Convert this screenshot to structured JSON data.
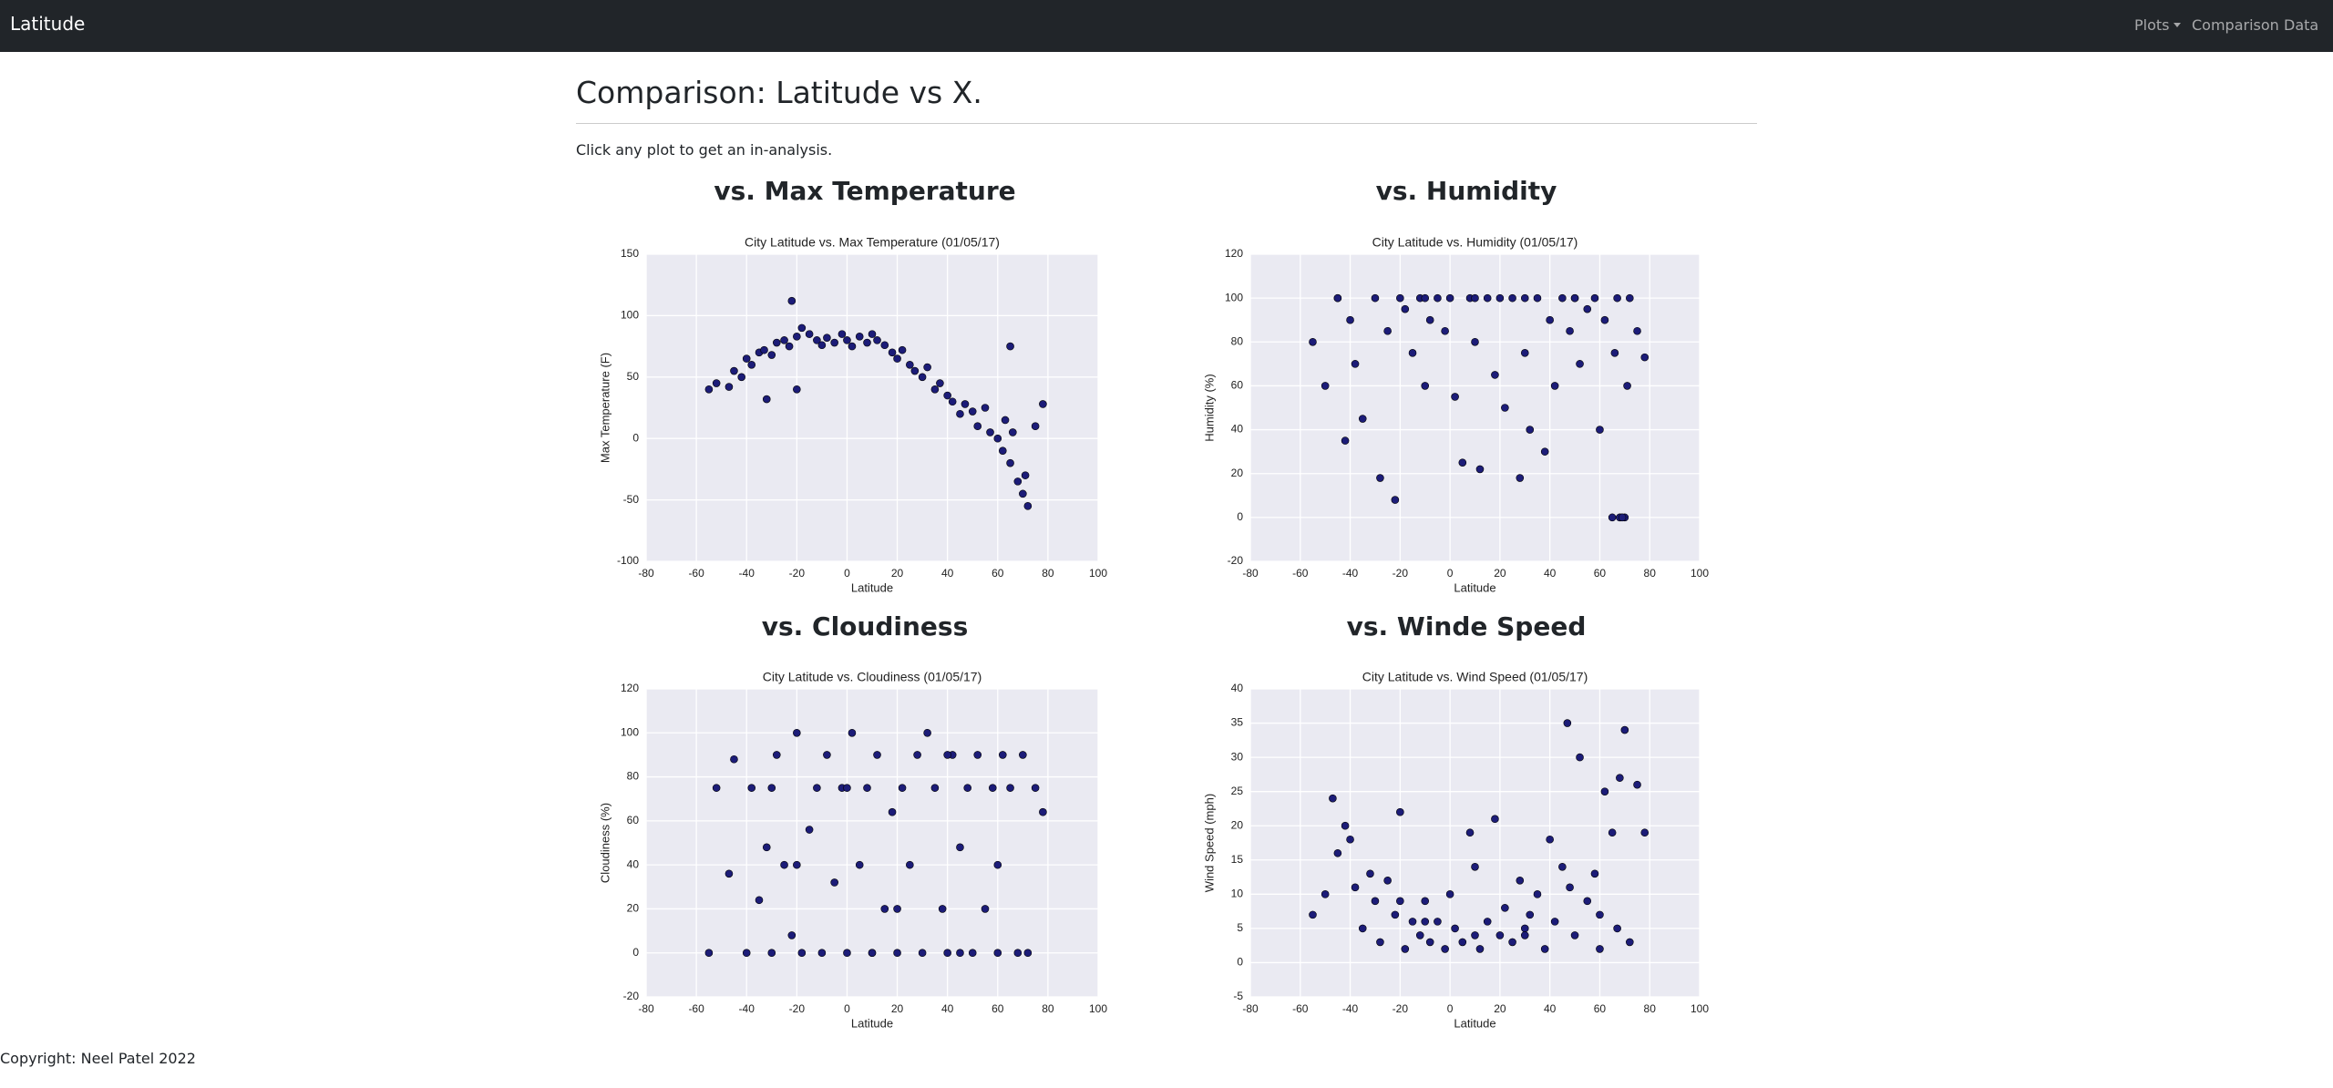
{
  "navbar": {
    "brand": "Latitude",
    "links": [
      "Plots",
      "Comparison",
      "Data"
    ]
  },
  "page": {
    "title": "Comparison: Latitude vs X.",
    "intro": "Click any plot to get an in-analysis.",
    "sections": [
      "vs. Max Temperature",
      "vs. Humidity",
      "vs. Cloudiness",
      "vs. Winde Speed"
    ],
    "footer": "Copyright: Neel Patel 2022"
  },
  "chart_data": [
    {
      "type": "scatter",
      "title": "City Latitude vs. Max Temperature (01/05/17)",
      "x_label": "Latitude",
      "y_label": "Max Temperature (F)",
      "color": "#1c1c78",
      "grid": true,
      "xlim": [
        -80,
        100
      ],
      "xticks": [
        -80,
        -60,
        -40,
        -20,
        0,
        20,
        40,
        60,
        80,
        100
      ],
      "ylim": [
        -100,
        150
      ],
      "yticks": [
        -100,
        -50,
        0,
        50,
        100,
        150
      ],
      "x": [
        -55,
        -52,
        -47,
        -45,
        -42,
        -40,
        -38,
        -35,
        -33,
        -30,
        -28,
        -25,
        -23,
        -22,
        -20,
        -18,
        -15,
        -12,
        -10,
        -8,
        -5,
        -2,
        0,
        2,
        5,
        8,
        10,
        12,
        15,
        18,
        20,
        22,
        25,
        27,
        30,
        32,
        35,
        37,
        40,
        42,
        45,
        47,
        50,
        52,
        55,
        57,
        60,
        62,
        63,
        65,
        66,
        68,
        70,
        71,
        72,
        75,
        78,
        -32,
        -20,
        65
      ],
      "values": [
        40,
        45,
        42,
        55,
        50,
        65,
        60,
        70,
        72,
        68,
        78,
        80,
        75,
        112,
        83,
        90,
        85,
        80,
        76,
        82,
        78,
        85,
        80,
        75,
        83,
        78,
        85,
        80,
        76,
        70,
        65,
        72,
        60,
        55,
        50,
        58,
        40,
        45,
        35,
        30,
        20,
        28,
        22,
        10,
        25,
        5,
        0,
        -10,
        15,
        -20,
        5,
        -35,
        -45,
        -30,
        -55,
        10,
        28,
        32,
        40,
        75
      ]
    },
    {
      "type": "scatter",
      "title": "City Latitude vs. Humidity (01/05/17)",
      "x_label": "Latitude",
      "y_label": "Humidity (%)",
      "color": "#1c1c78",
      "grid": true,
      "xlim": [
        -80,
        100
      ],
      "xticks": [
        -80,
        -60,
        -40,
        -20,
        0,
        20,
        40,
        60,
        80,
        100
      ],
      "ylim": [
        -20,
        120
      ],
      "yticks": [
        -20,
        0,
        20,
        40,
        60,
        80,
        100,
        120
      ],
      "x": [
        -55,
        -50,
        -45,
        -42,
        -40,
        -38,
        -35,
        -30,
        -28,
        -25,
        -22,
        -20,
        -18,
        -15,
        -12,
        -10,
        -8,
        -5,
        -2,
        0,
        2,
        5,
        8,
        10,
        12,
        15,
        18,
        20,
        22,
        25,
        28,
        30,
        32,
        35,
        38,
        40,
        42,
        45,
        48,
        50,
        52,
        55,
        58,
        60,
        62,
        65,
        67,
        68,
        70,
        72,
        75,
        78,
        -10,
        10,
        30,
        50,
        66,
        69,
        71,
        -45
      ],
      "values": [
        80,
        60,
        100,
        35,
        90,
        70,
        45,
        100,
        18,
        85,
        8,
        100,
        95,
        75,
        100,
        60,
        90,
        100,
        85,
        100,
        55,
        25,
        100,
        80,
        22,
        100,
        65,
        100,
        50,
        100,
        18,
        75,
        40,
        100,
        30,
        90,
        60,
        100,
        85,
        100,
        70,
        95,
        100,
        40,
        90,
        0,
        100,
        0,
        0,
        100,
        85,
        73,
        100,
        100,
        100,
        100,
        75,
        0,
        60,
        100
      ]
    },
    {
      "type": "scatter",
      "title": "City Latitude vs. Cloudiness (01/05/17)",
      "x_label": "Latitude",
      "y_label": "Cloudiness (%)",
      "color": "#1c1c78",
      "grid": true,
      "xlim": [
        -80,
        100
      ],
      "xticks": [
        -80,
        -60,
        -40,
        -20,
        0,
        20,
        40,
        60,
        80,
        100
      ],
      "ylim": [
        -20,
        120
      ],
      "yticks": [
        -20,
        0,
        20,
        40,
        60,
        80,
        100,
        120
      ],
      "x": [
        -55,
        -52,
        -47,
        -45,
        -40,
        -38,
        -35,
        -32,
        -30,
        -28,
        -25,
        -22,
        -20,
        -18,
        -15,
        -12,
        -10,
        -8,
        -5,
        -2,
        0,
        2,
        5,
        8,
        10,
        12,
        15,
        18,
        20,
        22,
        25,
        28,
        30,
        32,
        35,
        38,
        40,
        42,
        45,
        48,
        50,
        52,
        55,
        58,
        60,
        62,
        65,
        68,
        70,
        72,
        75,
        78,
        -30,
        -20,
        0,
        20,
        40,
        60,
        10,
        45
      ],
      "values": [
        0,
        75,
        36,
        88,
        0,
        75,
        24,
        48,
        0,
        90,
        40,
        8,
        100,
        0,
        56,
        75,
        0,
        90,
        32,
        75,
        0,
        100,
        40,
        75,
        0,
        90,
        20,
        64,
        0,
        75,
        40,
        90,
        0,
        100,
        75,
        20,
        0,
        90,
        48,
        75,
        0,
        90,
        20,
        75,
        0,
        90,
        75,
        0,
        90,
        0,
        75,
        64,
        75,
        40,
        75,
        20,
        90,
        40,
        0,
        0
      ]
    },
    {
      "type": "scatter",
      "title": "City Latitude vs. Wind Speed (01/05/17)",
      "x_label": "Latitude",
      "y_label": "Wind Speed (mph)",
      "color": "#1c1c78",
      "grid": true,
      "xlim": [
        -80,
        100
      ],
      "xticks": [
        -80,
        -60,
        -40,
        -20,
        0,
        20,
        40,
        60,
        80,
        100
      ],
      "ylim": [
        -5,
        40
      ],
      "yticks": [
        -5,
        0,
        5,
        10,
        15,
        20,
        25,
        30,
        35,
        40
      ],
      "x": [
        -55,
        -50,
        -47,
        -45,
        -42,
        -40,
        -38,
        -35,
        -32,
        -30,
        -28,
        -25,
        -22,
        -20,
        -18,
        -15,
        -12,
        -10,
        -8,
        -5,
        -2,
        0,
        2,
        5,
        8,
        10,
        12,
        15,
        18,
        20,
        22,
        25,
        28,
        30,
        32,
        35,
        38,
        40,
        42,
        45,
        47,
        50,
        52,
        55,
        58,
        60,
        62,
        65,
        67,
        68,
        70,
        72,
        75,
        78,
        -10,
        10,
        30,
        48,
        60,
        -20
      ],
      "values": [
        7,
        10,
        24,
        16,
        20,
        18,
        11,
        5,
        13,
        9,
        3,
        12,
        7,
        22,
        2,
        6,
        4,
        9,
        3,
        6,
        2,
        10,
        5,
        3,
        19,
        14,
        2,
        6,
        21,
        4,
        8,
        3,
        12,
        5,
        7,
        10,
        2,
        18,
        6,
        14,
        35,
        4,
        30,
        9,
        13,
        2,
        25,
        19,
        5,
        27,
        34,
        3,
        26,
        19,
        6,
        4,
        4,
        11,
        7,
        9
      ]
    }
  ]
}
